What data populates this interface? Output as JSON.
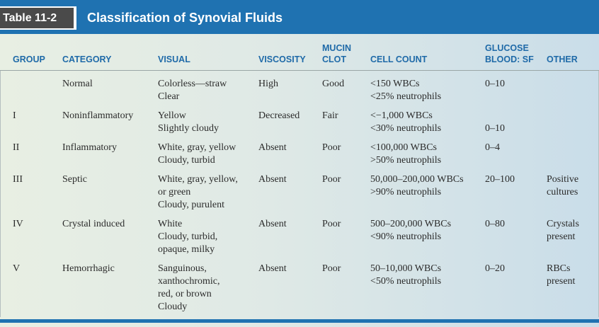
{
  "header": {
    "table_label": "Table 11-2",
    "title": "Classification of Synovial Fluids"
  },
  "columns": {
    "group": [
      "GROUP"
    ],
    "category": [
      "CATEGORY"
    ],
    "visual": [
      "VISUAL"
    ],
    "viscosity": [
      "VISCOSITY"
    ],
    "mucin": [
      "MUCIN",
      "CLOT"
    ],
    "cell": [
      "CELL COUNT"
    ],
    "glucose": [
      "GLUCOSE",
      "BLOOD: SF"
    ],
    "other": [
      "OTHER"
    ]
  },
  "rows": [
    {
      "group": [
        ""
      ],
      "category": [
        "Normal"
      ],
      "visual": [
        "Colorless—straw",
        "Clear"
      ],
      "viscosity": [
        "High"
      ],
      "mucin": [
        "Good"
      ],
      "cell": [
        "<150 WBCs",
        "<25% neutrophils"
      ],
      "glucose": [
        "0–10"
      ],
      "other": [
        ""
      ]
    },
    {
      "group": [
        "I"
      ],
      "category": [
        "Noninflammatory"
      ],
      "visual": [
        "Yellow",
        "Slightly cloudy"
      ],
      "viscosity": [
        "Decreased"
      ],
      "mucin": [
        "Fair"
      ],
      "cell": [
        "<−1,000 WBCs",
        "<30% neutrophils"
      ],
      "glucose": [
        "",
        "0–10"
      ],
      "other": [
        ""
      ]
    },
    {
      "group": [
        "II"
      ],
      "category": [
        "Inflammatory"
      ],
      "visual": [
        "White, gray, yellow",
        "Cloudy, turbid"
      ],
      "viscosity": [
        "Absent"
      ],
      "mucin": [
        "Poor"
      ],
      "cell": [
        "<100,000 WBCs",
        ">50% neutrophils"
      ],
      "glucose": [
        "0–4"
      ],
      "other": [
        ""
      ]
    },
    {
      "group": [
        "III"
      ],
      "category": [
        "Septic"
      ],
      "visual": [
        "White, gray, yellow,",
        "or green",
        "Cloudy, purulent"
      ],
      "viscosity": [
        "Absent"
      ],
      "mucin": [
        "Poor"
      ],
      "cell": [
        "50,000–200,000 WBCs",
        ">90% neutrophils"
      ],
      "glucose": [
        "20–100"
      ],
      "other": [
        "Positive",
        "cultures"
      ]
    },
    {
      "group": [
        "IV"
      ],
      "category": [
        "Crystal induced"
      ],
      "visual": [
        "White",
        "Cloudy, turbid,",
        "opaque, milky"
      ],
      "viscosity": [
        "Absent"
      ],
      "mucin": [
        "Poor"
      ],
      "cell": [
        "500–200,000 WBCs",
        "<90% neutrophils"
      ],
      "glucose": [
        "0–80"
      ],
      "other": [
        "Crystals",
        "present"
      ]
    },
    {
      "group": [
        "V"
      ],
      "category": [
        "Hemorrhagic"
      ],
      "visual": [
        "Sanguinous,",
        "xanthochromic,",
        "red, or brown",
        "Cloudy"
      ],
      "viscosity": [
        "Absent"
      ],
      "mucin": [
        "Poor"
      ],
      "cell": [
        "50–10,000 WBCs",
        "<50% neutrophils"
      ],
      "glucose": [
        "0–20"
      ],
      "other": [
        "RBCs",
        "present"
      ]
    }
  ],
  "colors": {
    "header_blue": "#1f72b1",
    "heading_text": "#1f6aa8",
    "label_dark": "#4a4a4a"
  }
}
